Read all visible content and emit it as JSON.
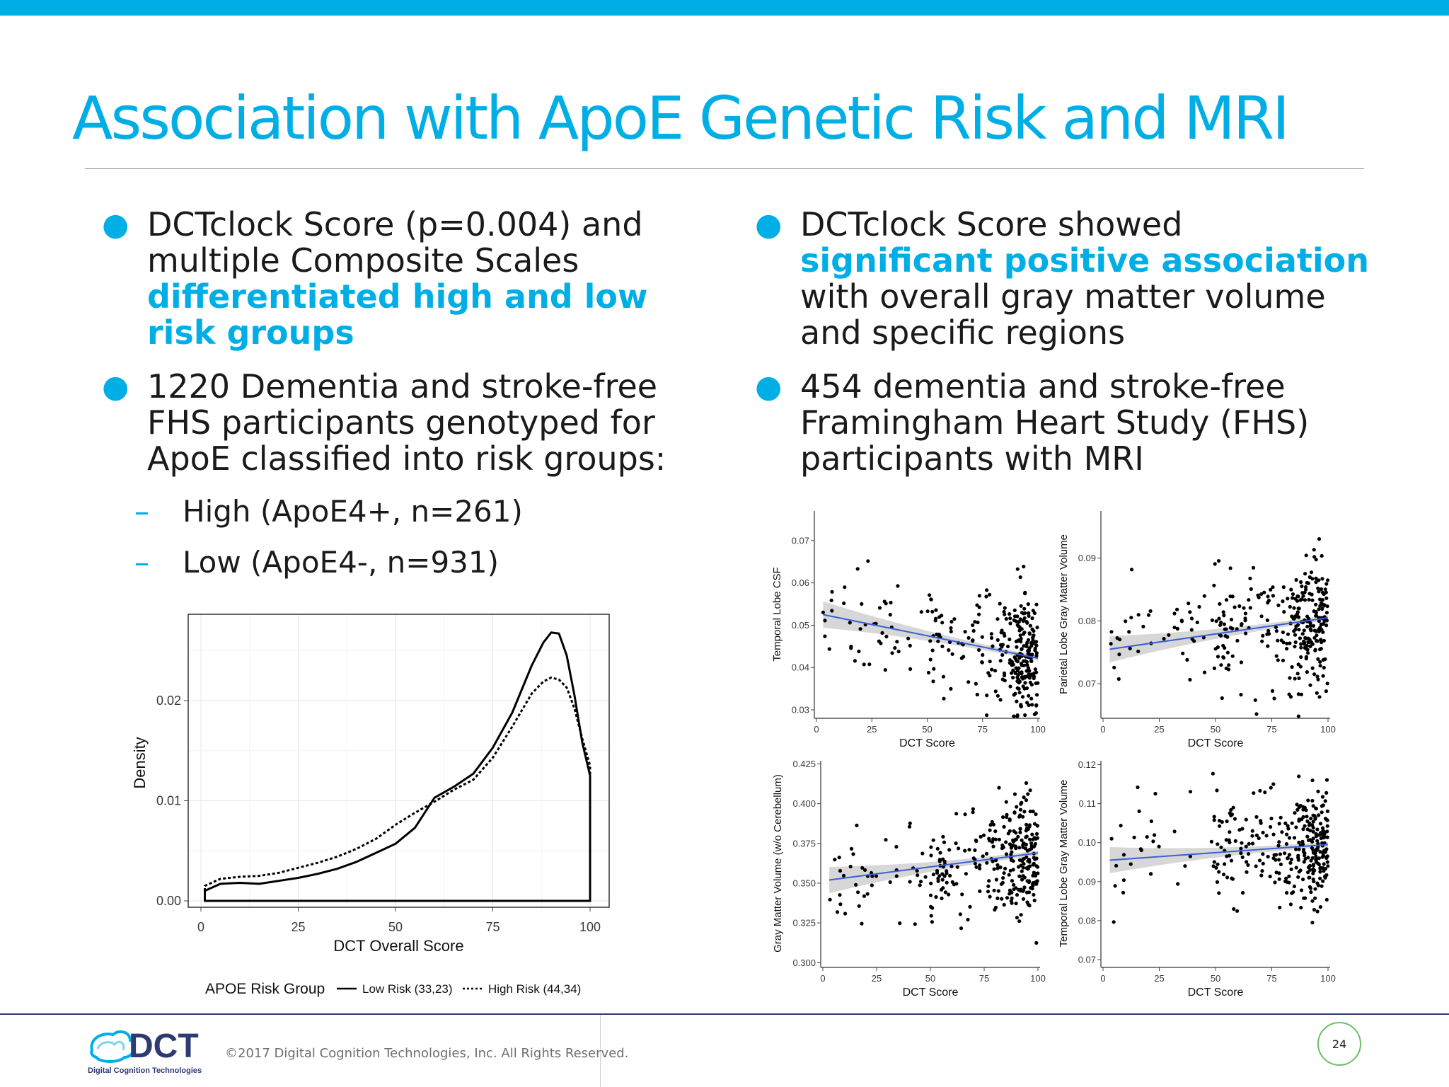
{
  "slide": {
    "title": "Association with ApoE Genetic Risk and MRI",
    "page_number": "24",
    "copyright": "©2017 Digital Cognition Technologies, Inc. All Rights Reserved.",
    "logo": {
      "wordmark": "DCT",
      "subtitle": "Digital Cognition Technologies"
    },
    "accent_color": "#00aee6"
  },
  "left": {
    "bullet1": {
      "text": "DCTclock Score (p=0.004) and multiple Composite Scales ",
      "highlight": "differentiated high and low risk groups"
    },
    "bullet2": {
      "text": "1220 Dementia and stroke-free FHS participants genotyped for ApoE classified into risk groups:"
    },
    "sub1": "High (ApoE4+, n=261)",
    "sub2": "Low (ApoE4-, n=931)"
  },
  "right": {
    "bullet1": {
      "pre": "DCTclock Score showed ",
      "highlight": "significant positive association",
      "post": " with overall gray matter volume and specific regions"
    },
    "bullet2": {
      "text": "454 dementia and stroke-free Framingham Heart Study (FHS) participants with MRI"
    }
  },
  "chart_data": [
    {
      "type": "line",
      "xlabel": "DCT Overall Score",
      "ylabel": "Density",
      "xlim": [
        0,
        100
      ],
      "ylim": [
        0,
        0.027
      ],
      "x_ticks": [
        "0",
        "25",
        "50",
        "75",
        "100"
      ],
      "y_ticks": [
        "0.00",
        "0.01",
        "0.02"
      ],
      "grid": true,
      "legend_title": "APOE Risk Group",
      "legend_position": "bottom",
      "series": [
        {
          "name": "Low Risk (33,23)",
          "style": "solid",
          "x": [
            1,
            5,
            10,
            15,
            20,
            25,
            30,
            35,
            40,
            45,
            50,
            55,
            60,
            65,
            70,
            75,
            80,
            85,
            88,
            90,
            92,
            94,
            96,
            98,
            100
          ],
          "y": [
            0.001,
            0.0017,
            0.0018,
            0.0017,
            0.002,
            0.0023,
            0.0027,
            0.0032,
            0.0039,
            0.0048,
            0.0057,
            0.0073,
            0.0103,
            0.0114,
            0.0127,
            0.0153,
            0.0188,
            0.0235,
            0.0258,
            0.0268,
            0.0267,
            0.0245,
            0.0205,
            0.0158,
            0.0125
          ]
        },
        {
          "name": "High Risk (44,34)",
          "style": "dotted",
          "x": [
            1,
            5,
            10,
            15,
            20,
            25,
            30,
            35,
            40,
            45,
            50,
            55,
            60,
            65,
            70,
            75,
            80,
            85,
            88,
            90,
            92,
            94,
            96,
            98,
            100
          ],
          "y": [
            0.0015,
            0.0022,
            0.0024,
            0.0025,
            0.0028,
            0.0033,
            0.0038,
            0.0044,
            0.0052,
            0.0062,
            0.0076,
            0.0088,
            0.0099,
            0.0111,
            0.0121,
            0.0143,
            0.0174,
            0.0207,
            0.0219,
            0.0223,
            0.0221,
            0.0213,
            0.0192,
            0.0162,
            0.0135
          ]
        }
      ]
    },
    {
      "type": "scatter",
      "xlabel": "DCT Score",
      "ylabel": "Temporal Lobe CSF",
      "xlim": [
        0,
        100
      ],
      "ylim": [
        0.028,
        0.077
      ],
      "x_ticks": [
        "0",
        "25",
        "50",
        "75",
        "100"
      ],
      "y_ticks": [
        "0.03",
        "0.04",
        "0.05",
        "0.06",
        "0.07"
      ],
      "trend": {
        "x": [
          3,
          100
        ],
        "y": [
          0.0525,
          0.0422
        ]
      },
      "seed": 11,
      "n": 330
    },
    {
      "type": "scatter",
      "xlabel": "DCT Score",
      "ylabel": "Parietal Lobe Gray Matter Volume",
      "xlim": [
        0,
        100
      ],
      "ylim": [
        0.0645,
        0.0975
      ],
      "x_ticks": [
        "0",
        "25",
        "50",
        "75",
        "100"
      ],
      "y_ticks": [
        "0.07",
        "0.08",
        "0.09"
      ],
      "trend": {
        "x": [
          3,
          100
        ],
        "y": [
          0.0755,
          0.0805
        ]
      },
      "seed": 23,
      "n": 330
    },
    {
      "type": "scatter",
      "xlabel": "DCT Score",
      "ylabel": "Gray Matter Volume (w/o Cerebellum)",
      "xlim": [
        0,
        100
      ],
      "ylim": [
        0.297,
        0.427
      ],
      "x_ticks": [
        "0",
        "25",
        "50",
        "75",
        "100"
      ],
      "y_ticks": [
        "0.300",
        "0.325",
        "0.350",
        "0.375",
        "0.400",
        "0.425"
      ],
      "trend": {
        "x": [
          3,
          100
        ],
        "y": [
          0.352,
          0.369
        ]
      },
      "seed": 37,
      "n": 330
    },
    {
      "type": "scatter",
      "xlabel": "DCT Score",
      "ylabel": "Temporal Lobe Gray Matter Volume",
      "xlim": [
        0,
        100
      ],
      "ylim": [
        0.068,
        0.121
      ],
      "x_ticks": [
        "0",
        "25",
        "50",
        "75",
        "100"
      ],
      "y_ticks": [
        "0.07",
        "0.08",
        "0.09",
        "0.10",
        "0.11",
        "0.12"
      ],
      "trend": {
        "x": [
          3,
          100
        ],
        "y": [
          0.0955,
          0.0995
        ]
      },
      "seed": 53,
      "n": 330
    }
  ]
}
